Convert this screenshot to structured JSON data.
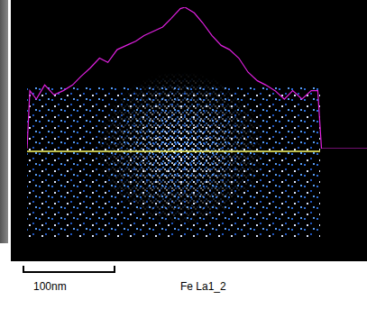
{
  "chart_data": {
    "type": "line",
    "title": "Fe La1_2",
    "scale_bar": {
      "value": 100,
      "label": "100nm"
    },
    "x": [
      0,
      3,
      10,
      19,
      29,
      39,
      49,
      58,
      68,
      78,
      87,
      97,
      107,
      117,
      126,
      136,
      146,
      155,
      165,
      170,
      180,
      189,
      199,
      209,
      218,
      228,
      238,
      248,
      257,
      267,
      277,
      286,
      296,
      306,
      313,
      317,
      366
    ],
    "values": [
      0,
      41,
      35,
      45,
      38,
      41,
      45,
      51,
      57,
      64,
      61,
      70,
      73,
      76,
      80,
      83,
      86,
      92,
      99,
      100,
      96,
      89,
      80,
      73,
      70,
      64,
      54,
      48,
      45,
      41,
      35,
      41,
      35,
      41,
      41,
      0,
      0
    ],
    "color": "#e020e0",
    "xlim": [
      0,
      366
    ],
    "ylim": [
      0,
      100
    ],
    "grid": false,
    "tick_labels": false
  }
}
